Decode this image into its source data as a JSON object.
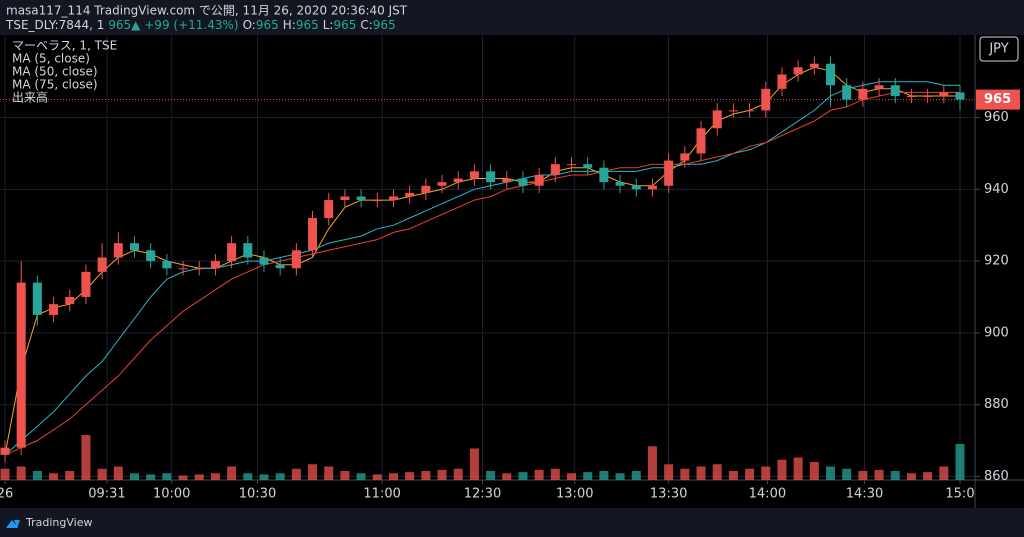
{
  "header": {
    "line1": "masa117_114 TradingView.com で公開, 11月 26, 2020 20:36:40 JST",
    "symbol": "TSE_DLY:7844, 1",
    "last": "965▲",
    "change": "+99 (+11.43%)",
    "ohlc": [
      {
        "label": "O:",
        "value": "965"
      },
      {
        "label": "H:",
        "value": "965"
      },
      {
        "label": "L:",
        "value": "965"
      },
      {
        "label": "C:",
        "value": "965"
      }
    ]
  },
  "chart_data": {
    "type": "candlestick",
    "title": "マーベラス, 1, TSE",
    "currency": "JPY",
    "up_color": "#ef5350",
    "down_color": "#26a69a",
    "open": [
      866,
      868,
      914,
      905,
      908,
      910,
      917,
      921,
      925,
      923,
      920,
      918,
      918,
      918,
      920,
      925,
      921,
      919,
      918,
      923,
      932,
      937,
      938,
      937,
      937,
      938,
      939,
      941,
      942,
      943,
      945,
      942,
      943,
      941,
      944,
      947,
      947,
      946,
      942,
      941,
      940,
      941,
      948,
      950,
      957,
      962,
      962,
      962,
      968,
      972,
      974,
      975,
      969,
      965,
      968,
      969,
      966,
      966,
      966,
      967
    ],
    "high": [
      870,
      920,
      916,
      910,
      912,
      919,
      925,
      928,
      927,
      925,
      922,
      920,
      920,
      922,
      927,
      927,
      923,
      921,
      925,
      934,
      939,
      940,
      940,
      939,
      940,
      941,
      943,
      944,
      945,
      947,
      947,
      945,
      945,
      946,
      949,
      949,
      949,
      948,
      944,
      943,
      943,
      950,
      952,
      959,
      964,
      964,
      964,
      970,
      974,
      976,
      977,
      977,
      971,
      970,
      971,
      971,
      968,
      968,
      969,
      969
    ],
    "low": [
      864,
      866,
      902,
      903,
      906,
      908,
      915,
      919,
      921,
      918,
      916,
      916,
      916,
      916,
      918,
      919,
      917,
      916,
      916,
      921,
      930,
      935,
      935,
      935,
      935,
      936,
      937,
      939,
      940,
      941,
      940,
      940,
      939,
      939,
      942,
      945,
      944,
      940,
      939,
      938,
      938,
      939,
      946,
      948,
      955,
      960,
      960,
      960,
      966,
      970,
      972,
      963,
      963,
      963,
      966,
      964,
      964,
      964,
      964,
      962
    ],
    "close": [
      868,
      914,
      905,
      908,
      910,
      917,
      921,
      925,
      923,
      920,
      918,
      918,
      918,
      920,
      925,
      921,
      919,
      918,
      923,
      932,
      937,
      938,
      937,
      937,
      938,
      939,
      941,
      942,
      943,
      945,
      942,
      943,
      941,
      944,
      947,
      947,
      946,
      942,
      941,
      940,
      941,
      948,
      950,
      957,
      962,
      962,
      962,
      968,
      972,
      974,
      975,
      969,
      965,
      968,
      969,
      966,
      966,
      966,
      967,
      965
    ],
    "series": [
      {
        "name": "MA (5, close)",
        "color": "#f6a623",
        "values": [
          866,
          890,
          905,
          907,
          908,
          912,
          917,
          921,
          923,
          922,
          920,
          919,
          918,
          918,
          920,
          922,
          921,
          919,
          919,
          921,
          929,
          935,
          937,
          937,
          937,
          938,
          939,
          940,
          942,
          943,
          943,
          943,
          942,
          942,
          945,
          946,
          946,
          944,
          942,
          941,
          941,
          945,
          948,
          954,
          959,
          961,
          962,
          964,
          969,
          972,
          974,
          973,
          969,
          967,
          968,
          968,
          966,
          966,
          966,
          966
        ]
      },
      {
        "name": "MA (50, close)",
        "color": "#2bb5c8",
        "values": [
          866,
          870,
          874,
          878,
          883,
          888,
          892,
          898,
          904,
          910,
          915,
          917,
          918,
          918,
          919,
          920,
          920,
          921,
          922,
          923,
          925,
          926,
          927,
          929,
          930,
          932,
          934,
          936,
          938,
          940,
          941,
          942,
          943,
          944,
          944,
          945,
          945,
          945,
          945,
          945,
          946,
          946,
          947,
          947,
          948,
          950,
          951,
          953,
          956,
          959,
          962,
          966,
          968,
          969,
          970,
          970,
          970,
          970,
          969,
          969
        ]
      },
      {
        "name": "MA (75, close)",
        "color": "#e8412f",
        "values": [
          866,
          868,
          870,
          873,
          876,
          880,
          884,
          888,
          893,
          898,
          902,
          906,
          909,
          912,
          915,
          917,
          919,
          920,
          921,
          922,
          923,
          924,
          925,
          926,
          928,
          929,
          931,
          933,
          935,
          937,
          938,
          940,
          941,
          942,
          943,
          944,
          944,
          945,
          946,
          946,
          947,
          947,
          947,
          948,
          949,
          950,
          952,
          953,
          955,
          957,
          959,
          962,
          963,
          965,
          966,
          967,
          967,
          967,
          967,
          967
        ]
      }
    ],
    "volume_name": "出来高",
    "volume": [
      10,
      12,
      8,
      6,
      8,
      40,
      10,
      12,
      6,
      5,
      6,
      4,
      5,
      6,
      12,
      6,
      5,
      6,
      10,
      14,
      12,
      8,
      6,
      5,
      6,
      7,
      8,
      9,
      10,
      28,
      8,
      6,
      7,
      9,
      10,
      6,
      7,
      8,
      6,
      8,
      30,
      14,
      10,
      12,
      14,
      8,
      10,
      12,
      18,
      20,
      16,
      12,
      10,
      8,
      9,
      8,
      6,
      7,
      12,
      32
    ],
    "last_price": 965,
    "ylim": [
      859,
      983
    ],
    "yticks": [
      860,
      880,
      900,
      920,
      940,
      960
    ],
    "xticks": [
      {
        "value": 0,
        "label": "26"
      },
      {
        "value": 6.3,
        "label": "09:31"
      },
      {
        "value": 10.3,
        "label": "10:00"
      },
      {
        "value": 15.6,
        "label": "10:30"
      },
      {
        "value": 23.3,
        "label": "11:00"
      },
      {
        "value": 29.5,
        "label": "12:30"
      },
      {
        "value": 35.2,
        "label": "13:00"
      },
      {
        "value": 41,
        "label": "13:30"
      },
      {
        "value": 47.1,
        "label": "14:00"
      },
      {
        "value": 53.1,
        "label": "14:30"
      },
      {
        "value": 59,
        "label": "15:0"
      }
    ],
    "grid": true
  },
  "footer": {
    "brand": "TradingView"
  }
}
